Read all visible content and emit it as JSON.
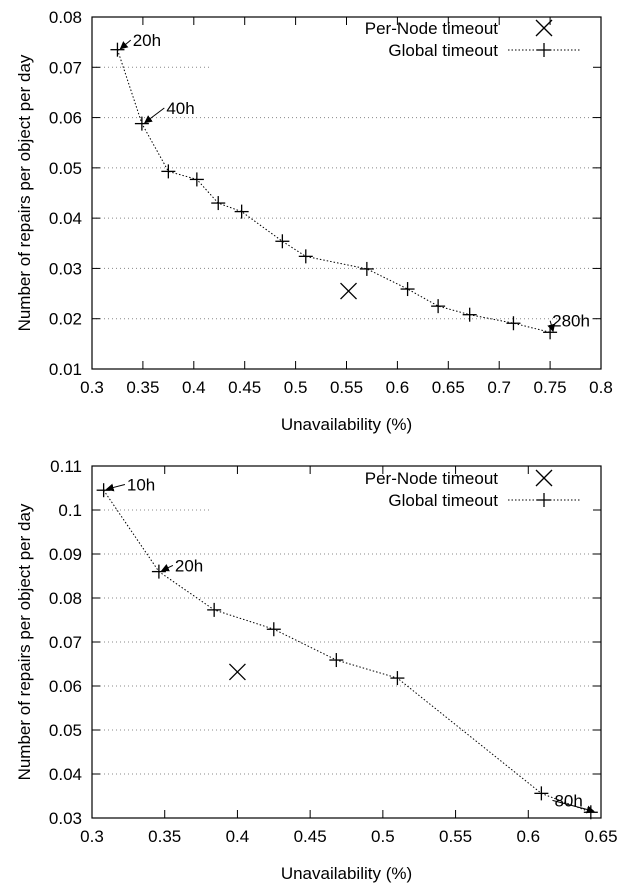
{
  "chart_data": [
    {
      "type": "scatter",
      "xlabel": "Unavailability (%)",
      "ylabel": "Number of repairs per object per day",
      "xlim": [
        0.3,
        0.8
      ],
      "ylim": [
        0.01,
        0.08
      ],
      "xticks": [
        0.3,
        0.35,
        0.4,
        0.45,
        0.5,
        0.55,
        0.6,
        0.65,
        0.7,
        0.75,
        0.8
      ],
      "xtick_labels": [
        "0.3",
        "0.35",
        "0.4",
        "0.45",
        "0.5",
        "0.55",
        "0.6",
        "0.65",
        "0.7",
        "0.75",
        "0.8"
      ],
      "yticks": [
        0.01,
        0.02,
        0.03,
        0.04,
        0.05,
        0.06,
        0.07,
        0.08
      ],
      "ytick_labels": [
        "0.01",
        "0.02",
        "0.03",
        "0.04",
        "0.05",
        "0.06",
        "0.07",
        "0.08"
      ],
      "grid": "horizontal dotted",
      "legend_position": "top-right",
      "series": [
        {
          "name": "Per-Node timeout",
          "marker": "x",
          "line": "none",
          "points": [
            [
              0.552,
              0.0255
            ]
          ]
        },
        {
          "name": "Global timeout",
          "marker": "+",
          "line": "dotted",
          "points": [
            [
              0.325,
              0.0735
            ],
            [
              0.349,
              0.0588
            ],
            [
              0.375,
              0.0493
            ],
            [
              0.403,
              0.0477
            ],
            [
              0.424,
              0.043
            ],
            [
              0.447,
              0.0413
            ],
            [
              0.487,
              0.0354
            ],
            [
              0.51,
              0.0324
            ],
            [
              0.57,
              0.0299
            ],
            [
              0.61,
              0.0259
            ],
            [
              0.64,
              0.0225
            ],
            [
              0.671,
              0.0208
            ],
            [
              0.714,
              0.0191
            ],
            [
              0.75,
              0.0173
            ]
          ]
        }
      ],
      "annotations": [
        {
          "text": "20h",
          "x": 0.325,
          "y": 0.0735,
          "label_x": 0.34,
          "label_y": 0.0754
        },
        {
          "text": "40h",
          "x": 0.349,
          "y": 0.0588,
          "label_x": 0.373,
          "label_y": 0.0619
        },
        {
          "text": "280h",
          "x": 0.75,
          "y": 0.0173,
          "label_x": 0.752,
          "label_y": 0.0196
        }
      ]
    },
    {
      "type": "scatter",
      "xlabel": "Unavailability (%)",
      "ylabel": "Number of repairs per object per day",
      "xlim": [
        0.3,
        0.65
      ],
      "ylim": [
        0.03,
        0.11
      ],
      "xticks": [
        0.3,
        0.35,
        0.4,
        0.45,
        0.5,
        0.55,
        0.6,
        0.65
      ],
      "xtick_labels": [
        "0.3",
        "0.35",
        "0.4",
        "0.45",
        "0.5",
        "0.55",
        "0.6",
        "0.65"
      ],
      "yticks": [
        0.03,
        0.04,
        0.05,
        0.06,
        0.07,
        0.08,
        0.09,
        0.1,
        0.11
      ],
      "ytick_labels": [
        "0.03",
        "0.04",
        "0.05",
        "0.06",
        "0.07",
        "0.08",
        "0.09",
        "0.1",
        "0.11"
      ],
      "grid": "horizontal dotted",
      "legend_position": "top-right",
      "series": [
        {
          "name": "Per-Node timeout",
          "marker": "x",
          "line": "none",
          "points": [
            [
              0.4,
              0.0632
            ]
          ]
        },
        {
          "name": "Global timeout",
          "marker": "+",
          "line": "dotted",
          "points": [
            [
              0.308,
              0.1045
            ],
            [
              0.346,
              0.086
            ],
            [
              0.384,
              0.0773
            ],
            [
              0.425,
              0.0729
            ],
            [
              0.468,
              0.0659
            ],
            [
              0.51,
              0.0618
            ],
            [
              0.609,
              0.0356
            ],
            [
              0.643,
              0.0313
            ]
          ]
        }
      ],
      "annotations": [
        {
          "text": "10h",
          "x": 0.308,
          "y": 0.1045,
          "label_x": 0.324,
          "label_y": 0.1058
        },
        {
          "text": "20h",
          "x": 0.346,
          "y": 0.086,
          "label_x": 0.357,
          "label_y": 0.0874
        },
        {
          "text": "80h",
          "x": 0.643,
          "y": 0.0313,
          "label_x": 0.618,
          "label_y": 0.034
        }
      ]
    }
  ]
}
